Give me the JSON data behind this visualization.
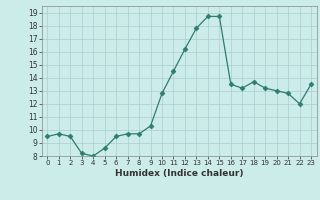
{
  "x": [
    0,
    1,
    2,
    3,
    4,
    5,
    6,
    7,
    8,
    9,
    10,
    11,
    12,
    13,
    14,
    15,
    16,
    17,
    18,
    19,
    20,
    21,
    22,
    23
  ],
  "y": [
    9.5,
    9.7,
    9.5,
    8.2,
    8.0,
    8.6,
    9.5,
    9.7,
    9.7,
    10.3,
    12.8,
    14.5,
    16.2,
    17.8,
    18.7,
    18.7,
    13.5,
    13.2,
    13.7,
    13.2,
    13.0,
    12.8,
    12.0,
    13.5
  ],
  "line_color": "#2e7d6e",
  "marker": "D",
  "marker_size": 2.5,
  "bg_color": "#ccecea",
  "grid_color": "#aacfcc",
  "xlabel": "Humidex (Indice chaleur)",
  "xlim": [
    -0.5,
    23.5
  ],
  "ylim": [
    8,
    19.5
  ],
  "yticks": [
    8,
    9,
    10,
    11,
    12,
    13,
    14,
    15,
    16,
    17,
    18,
    19
  ],
  "xticks": [
    0,
    1,
    2,
    3,
    4,
    5,
    6,
    7,
    8,
    9,
    10,
    11,
    12,
    13,
    14,
    15,
    16,
    17,
    18,
    19,
    20,
    21,
    22,
    23
  ]
}
